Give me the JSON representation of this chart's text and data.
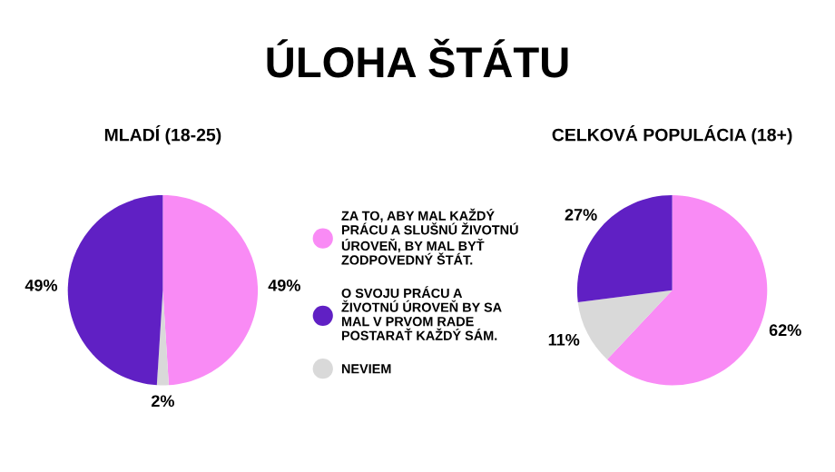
{
  "chart_data": [
    {
      "type": "pie",
      "title": "MLADÍ (18-25)",
      "annotations": [
        "ÚLOHA ŠTÁTU"
      ],
      "categories": [
        "ZA TO, ABY MAL KAŽDÝ\nPRÁCU A SLUŠNÚ ŽIVOTNÚ\nÚROVEŇ, BY MAL BYŤ\nZODPOVEDNÝ ŠTÁT.",
        "NEVIEM",
        "O SVOJU PRÁCU A\nŽIVOTNÚ ÚROVEŇ BY SA\nMAL V PRVOM RADE\nPOSTARAŤ KAŽDÝ SÁM."
      ],
      "values": [
        49,
        2,
        49
      ],
      "value_labels": [
        "49%",
        "2%",
        "49%"
      ],
      "colors": [
        "#f98bf5",
        "#d9d9d9",
        "#6020c4"
      ],
      "legend": "right"
    },
    {
      "type": "pie",
      "title": "CELKOVÁ POPULÁCIA (18+)",
      "values": [
        62,
        11,
        27
      ],
      "value_labels": [
        "62%",
        "11%",
        "27%"
      ],
      "colors": [
        "#f98bf5",
        "#d9d9d9",
        "#6020c4"
      ]
    }
  ]
}
